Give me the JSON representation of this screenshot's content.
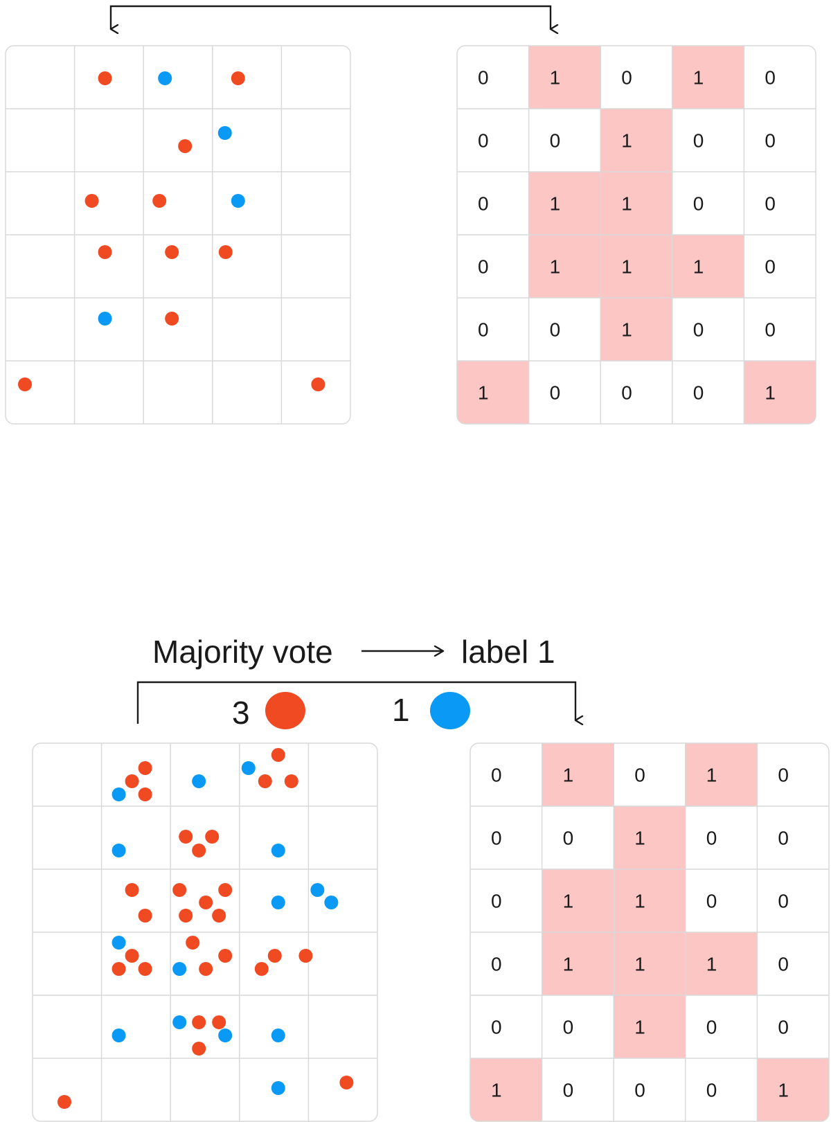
{
  "colors": {
    "red": "#f04a23",
    "blue": "#0a99f5",
    "highlight": "#fcc6c5",
    "grid_line": "#d9d9d9",
    "arrow": "#1a1a1a"
  },
  "top": {
    "points": [
      {
        "row": 0,
        "col": 1,
        "color": "red"
      },
      {
        "row": 0,
        "col": 2,
        "color": "blue"
      },
      {
        "row": 0,
        "col": 3,
        "color": "red"
      },
      {
        "row": 1,
        "col": 2,
        "color": "red"
      },
      {
        "row": 1,
        "col": 3,
        "color": "blue"
      },
      {
        "row": 2,
        "col": 1,
        "color": "red"
      },
      {
        "row": 2,
        "col": 2,
        "color": "red"
      },
      {
        "row": 2,
        "col": 3,
        "color": "blue"
      },
      {
        "row": 3,
        "col": 1,
        "color": "red"
      },
      {
        "row": 3,
        "col": 2,
        "color": "red"
      },
      {
        "row": 3,
        "col": 3,
        "color": "red"
      },
      {
        "row": 4,
        "col": 1,
        "color": "blue"
      },
      {
        "row": 4,
        "col": 2,
        "color": "red"
      },
      {
        "row": 5,
        "col": 0,
        "color": "red"
      },
      {
        "row": 5,
        "col": 4,
        "color": "red"
      }
    ],
    "labels": [
      [
        "0",
        "1",
        "0",
        "1",
        "0"
      ],
      [
        "0",
        "0",
        "1",
        "0",
        "0"
      ],
      [
        "0",
        "1",
        "1",
        "0",
        "0"
      ],
      [
        "0",
        "1",
        "1",
        "1",
        "0"
      ],
      [
        "0",
        "0",
        "1",
        "0",
        "0"
      ],
      [
        "1",
        "0",
        "0",
        "0",
        "1"
      ]
    ]
  },
  "bottom": {
    "caption_left": "Majority vote",
    "caption_right": "label 1",
    "vote_red_count": "3",
    "vote_blue_count": "1",
    "points": [
      {
        "row": 0,
        "col": 1,
        "color": "red"
      },
      {
        "row": 0,
        "col": 1,
        "color": "red"
      },
      {
        "row": 0,
        "col": 1,
        "color": "red"
      },
      {
        "row": 0,
        "col": 1,
        "color": "blue"
      },
      {
        "row": 0,
        "col": 2,
        "color": "blue"
      },
      {
        "row": 0,
        "col": 3,
        "color": "blue"
      },
      {
        "row": 0,
        "col": 3,
        "color": "red"
      },
      {
        "row": 0,
        "col": 3,
        "color": "red"
      },
      {
        "row": 0,
        "col": 3,
        "color": "red"
      },
      {
        "row": 1,
        "col": 1,
        "color": "blue"
      },
      {
        "row": 1,
        "col": 2,
        "color": "red"
      },
      {
        "row": 1,
        "col": 2,
        "color": "red"
      },
      {
        "row": 1,
        "col": 2,
        "color": "red"
      },
      {
        "row": 1,
        "col": 3,
        "color": "blue"
      },
      {
        "row": 2,
        "col": 1,
        "color": "red"
      },
      {
        "row": 2,
        "col": 1,
        "color": "red"
      },
      {
        "row": 2,
        "col": 2,
        "color": "red"
      },
      {
        "row": 2,
        "col": 2,
        "color": "red"
      },
      {
        "row": 2,
        "col": 2,
        "color": "red"
      },
      {
        "row": 2,
        "col": 2,
        "color": "red"
      },
      {
        "row": 2,
        "col": 2,
        "color": "red"
      },
      {
        "row": 2,
        "col": 3,
        "color": "blue"
      },
      {
        "row": 2,
        "col": 4,
        "color": "blue"
      },
      {
        "row": 2,
        "col": 4,
        "color": "blue"
      },
      {
        "row": 3,
        "col": 1,
        "color": "blue"
      },
      {
        "row": 3,
        "col": 1,
        "color": "red"
      },
      {
        "row": 3,
        "col": 1,
        "color": "red"
      },
      {
        "row": 3,
        "col": 1,
        "color": "red"
      },
      {
        "row": 3,
        "col": 2,
        "color": "red"
      },
      {
        "row": 3,
        "col": 2,
        "color": "red"
      },
      {
        "row": 3,
        "col": 2,
        "color": "red"
      },
      {
        "row": 3,
        "col": 2,
        "color": "blue"
      },
      {
        "row": 3,
        "col": 3,
        "color": "red"
      },
      {
        "row": 3,
        "col": 3,
        "color": "red"
      },
      {
        "row": 3,
        "col": 4,
        "color": "red"
      },
      {
        "row": 4,
        "col": 1,
        "color": "blue"
      },
      {
        "row": 4,
        "col": 2,
        "color": "blue"
      },
      {
        "row": 4,
        "col": 2,
        "color": "red"
      },
      {
        "row": 4,
        "col": 2,
        "color": "red"
      },
      {
        "row": 4,
        "col": 2,
        "color": "red"
      },
      {
        "row": 4,
        "col": 2,
        "color": "blue"
      },
      {
        "row": 4,
        "col": 3,
        "color": "blue"
      },
      {
        "row": 5,
        "col": 0,
        "color": "red"
      },
      {
        "row": 5,
        "col": 3,
        "color": "blue"
      },
      {
        "row": 5,
        "col": 4,
        "color": "red"
      }
    ],
    "labels": [
      [
        "0",
        "1",
        "0",
        "1",
        "0"
      ],
      [
        "0",
        "0",
        "1",
        "0",
        "0"
      ],
      [
        "0",
        "1",
        "1",
        "0",
        "0"
      ],
      [
        "0",
        "1",
        "1",
        "1",
        "0"
      ],
      [
        "0",
        "0",
        "1",
        "0",
        "0"
      ],
      [
        "1",
        "0",
        "0",
        "0",
        "1"
      ]
    ]
  }
}
